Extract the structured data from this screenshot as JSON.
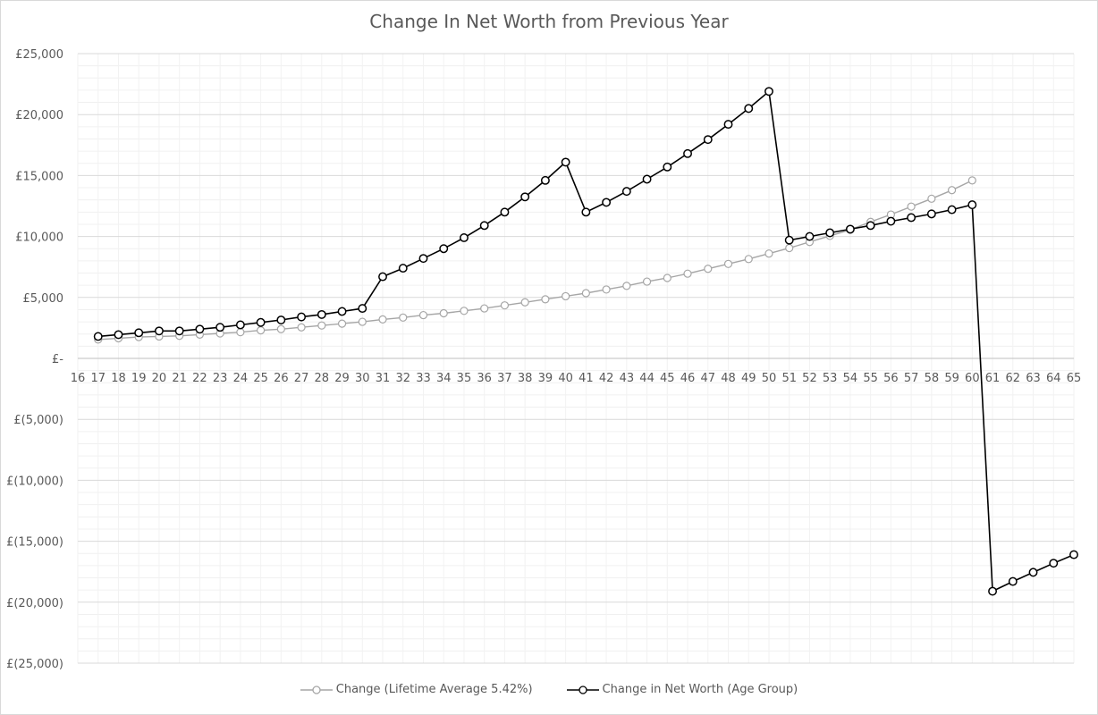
{
  "chart_data": {
    "type": "line",
    "title": "Change In Net Worth from Previous Year",
    "xlabel": "",
    "ylabel": "",
    "x_ticks": [
      16,
      17,
      18,
      19,
      20,
      21,
      22,
      23,
      24,
      25,
      26,
      27,
      28,
      29,
      30,
      31,
      32,
      33,
      34,
      35,
      36,
      37,
      38,
      39,
      40,
      41,
      42,
      43,
      44,
      45,
      46,
      47,
      48,
      49,
      50,
      51,
      52,
      53,
      54,
      55,
      56,
      57,
      58,
      59,
      60,
      61,
      62,
      63,
      64,
      65
    ],
    "xlim": [
      16,
      65
    ],
    "ylim": [
      -25000,
      25000
    ],
    "y_ticks": [
      {
        "value": 25000,
        "label": "£25,000"
      },
      {
        "value": 20000,
        "label": "£20,000"
      },
      {
        "value": 15000,
        "label": "£15,000"
      },
      {
        "value": 10000,
        "label": "£10,000"
      },
      {
        "value": 5000,
        "label": "£5,000"
      },
      {
        "value": 0,
        "label": "£-"
      },
      {
        "value": -5000,
        "label": "£(5,000)"
      },
      {
        "value": -10000,
        "label": "£(10,000)"
      },
      {
        "value": -15000,
        "label": "£(15,000)"
      },
      {
        "value": -20000,
        "label": "£(20,000)"
      },
      {
        "value": -25000,
        "label": "£(25,000)"
      }
    ],
    "grid": true,
    "legend_position": "bottom",
    "series": [
      {
        "name": "Change (Lifetime Average 5.42%)",
        "color": "#a6a6a6",
        "x": [
          17,
          18,
          19,
          20,
          21,
          22,
          23,
          24,
          25,
          26,
          27,
          28,
          29,
          30,
          31,
          32,
          33,
          34,
          35,
          36,
          37,
          38,
          39,
          40,
          41,
          42,
          43,
          44,
          45,
          46,
          47,
          48,
          49,
          50,
          51,
          52,
          53,
          54,
          55,
          56,
          57,
          58,
          59,
          60
        ],
        "values": [
          1550,
          1650,
          1750,
          1800,
          1850,
          1950,
          2050,
          2150,
          2300,
          2400,
          2550,
          2700,
          2850,
          3000,
          3200,
          3350,
          3550,
          3700,
          3900,
          4100,
          4350,
          4600,
          4850,
          5100,
          5350,
          5650,
          5950,
          6300,
          6600,
          6950,
          7350,
          7750,
          8150,
          8600,
          9050,
          9550,
          10050,
          10550,
          11200,
          11800,
          12450,
          13100,
          13800,
          14600
        ]
      },
      {
        "name": "Change in Net Worth (Age Group)",
        "color": "#000000",
        "x": [
          17,
          18,
          19,
          20,
          21,
          22,
          23,
          24,
          25,
          26,
          27,
          28,
          29,
          30,
          31,
          32,
          33,
          34,
          35,
          36,
          37,
          38,
          39,
          40,
          41,
          42,
          43,
          44,
          45,
          46,
          47,
          48,
          49,
          50,
          51,
          52,
          53,
          54,
          55,
          56,
          57,
          58,
          59,
          60,
          61,
          62,
          63,
          64,
          65
        ],
        "values": [
          1800,
          1950,
          2100,
          2250,
          2250,
          2400,
          2550,
          2750,
          2950,
          3150,
          3400,
          3600,
          3850,
          4100,
          6700,
          7400,
          8200,
          9000,
          9900,
          10900,
          12000,
          13250,
          14600,
          16100,
          12000,
          12800,
          13700,
          14700,
          15700,
          16800,
          17950,
          19200,
          20500,
          21900,
          9700,
          10000,
          10300,
          10600,
          10900,
          11250,
          11550,
          11850,
          12200,
          12600,
          -19100,
          -18300,
          -17550,
          -16800,
          -16100
        ]
      }
    ]
  }
}
